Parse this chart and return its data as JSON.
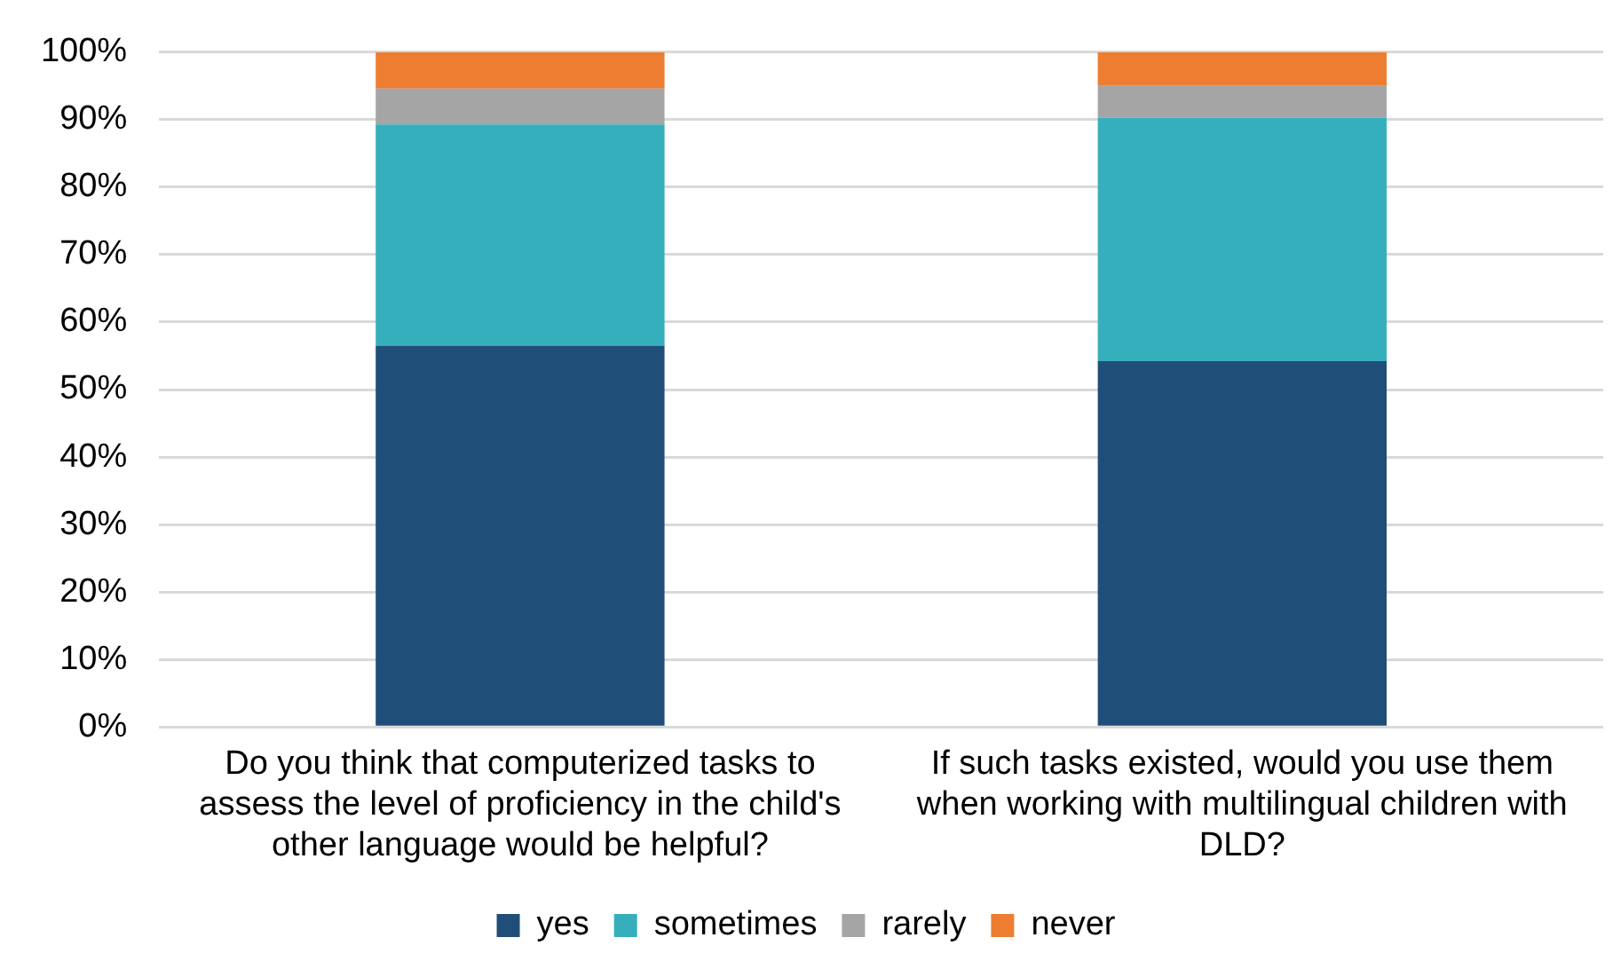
{
  "chart_data": {
    "type": "bar",
    "stacked": true,
    "categories": [
      "Do you think that computerized tasks to assess the level of proficiency in the child's other language would be helpful?",
      "If such tasks existed, would you use them when working with multilingual children with DLD?"
    ],
    "series": [
      {
        "name": "yes",
        "color": "#1f4e79",
        "values": [
          56.5,
          54.2
        ]
      },
      {
        "name": "sometimes",
        "color": "#36afbd",
        "values": [
          32.8,
          36.1
        ]
      },
      {
        "name": "rarely",
        "color": "#a5a5a5",
        "values": [
          5.3,
          4.7
        ]
      },
      {
        "name": "never",
        "color": "#ed7d31",
        "values": [
          5.4,
          5.0
        ]
      }
    ],
    "ylim": [
      0,
      100
    ],
    "yticks": [
      {
        "value": 0,
        "label": "0%"
      },
      {
        "value": 10,
        "label": "10%"
      },
      {
        "value": 20,
        "label": "20%"
      },
      {
        "value": 30,
        "label": "30%"
      },
      {
        "value": 40,
        "label": "40%"
      },
      {
        "value": 50,
        "label": "50%"
      },
      {
        "value": 60,
        "label": "60%"
      },
      {
        "value": 70,
        "label": "70%"
      },
      {
        "value": 80,
        "label": "80%"
      },
      {
        "value": 90,
        "label": "90%"
      },
      {
        "value": 100,
        "label": "100%"
      }
    ],
    "grid": "y",
    "legend": "bottom"
  }
}
